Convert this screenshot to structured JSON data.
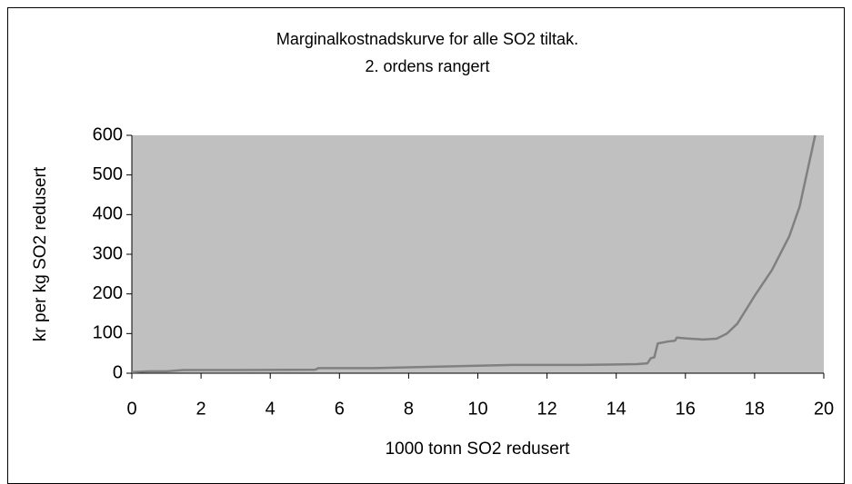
{
  "chart_data": {
    "type": "line",
    "title": "Marginalkostnadskurve for alle SO2 tiltak.",
    "subtitle": "2. ordens rangert",
    "x_label": "1000 tonn SO2 redusert",
    "y_label": "kr per kg SO2 redusert",
    "x": [
      0,
      0.5,
      1,
      1.5,
      3,
      5.3,
      5.4,
      7,
      8,
      9,
      10,
      11,
      12,
      13,
      14,
      14.6,
      14.9,
      15.0,
      15.1,
      15.2,
      15.5,
      15.7,
      15.75,
      16,
      16.5,
      16.9,
      17.2,
      17.5,
      18,
      18.5,
      19,
      19.3,
      19.5,
      19.75
    ],
    "values": [
      3,
      5,
      5,
      8,
      8,
      9,
      13,
      13,
      15,
      17,
      19,
      21,
      21,
      21,
      22,
      23,
      25,
      38,
      40,
      75,
      80,
      82,
      90,
      88,
      85,
      87,
      100,
      125,
      195,
      260,
      345,
      420,
      500,
      600
    ],
    "color": "#808080",
    "background": "#c0c0c0",
    "xlim": [
      0,
      20
    ],
    "xticks": [
      0,
      2,
      4,
      6,
      8,
      10,
      12,
      14,
      16,
      18,
      20
    ],
    "ylim": [
      0,
      600
    ],
    "yticks": [
      0,
      100,
      200,
      300,
      400,
      500,
      600
    ],
    "grid": false
  }
}
